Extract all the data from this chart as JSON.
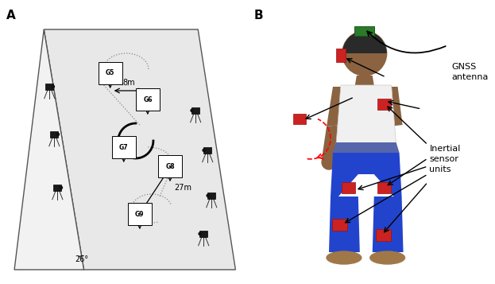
{
  "fig_width": 6.23,
  "fig_height": 3.57,
  "dpi": 100,
  "bg_color": "#ffffff",
  "panel_A_label": "A",
  "panel_B_label": "B",
  "slope_color": "#e8e8e8",
  "slope_edge_color": "#555555",
  "gate_labels": [
    "G5",
    "G6",
    "G7",
    "G8",
    "G9"
  ],
  "dimension_8m": "8m",
  "dimension_27m": "27m",
  "angle_label": "26°",
  "gnss_label": "GNSS\nantenna",
  "inertial_label": "Inertial\nsensor\nunits",
  "skin_color": "#8B6340",
  "hair_color": "#2a2a2a",
  "gnss_green": "#2a7a2a",
  "sensor_red": "#cc2222",
  "pants_blue": "#2244cc",
  "white_shirt": "#f0f0f0"
}
